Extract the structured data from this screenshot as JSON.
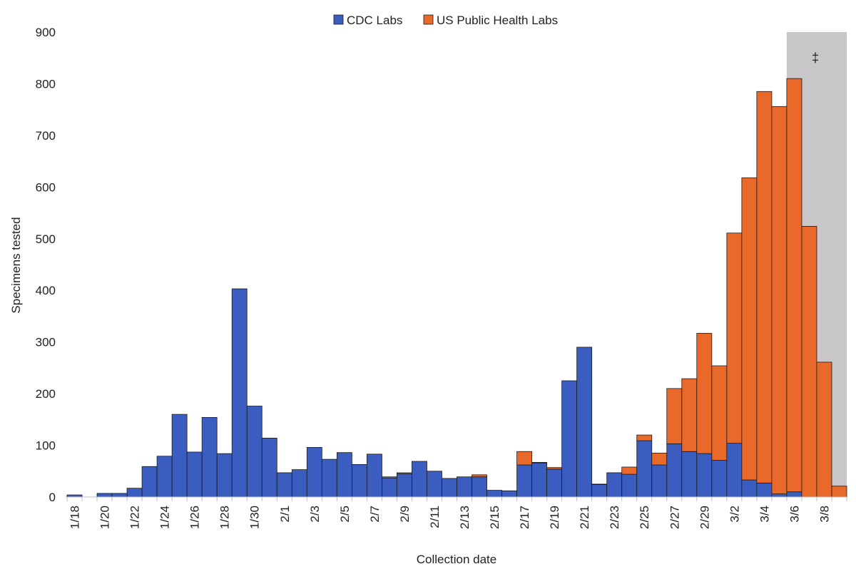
{
  "chart_data": {
    "type": "bar",
    "stacked": true,
    "title": "",
    "xlabel": "Collection date",
    "ylabel": "Specimens tested",
    "ylim": [
      0,
      900
    ],
    "yticks": [
      0,
      100,
      200,
      300,
      400,
      500,
      600,
      700,
      800,
      900
    ],
    "categories": [
      "1/18",
      "1/19",
      "1/20",
      "1/21",
      "1/22",
      "1/23",
      "1/24",
      "1/25",
      "1/26",
      "1/27",
      "1/28",
      "1/29",
      "1/30",
      "1/31",
      "2/1",
      "2/2",
      "2/3",
      "2/4",
      "2/5",
      "2/6",
      "2/7",
      "2/8",
      "2/9",
      "2/10",
      "2/11",
      "2/12",
      "2/13",
      "2/14",
      "2/15",
      "2/16",
      "2/17",
      "2/18",
      "2/19",
      "2/20",
      "2/21",
      "2/22",
      "2/23",
      "2/24",
      "2/25",
      "2/26",
      "2/27",
      "2/28",
      "2/29",
      "3/1",
      "3/2",
      "3/3",
      "3/4",
      "3/5",
      "3/6",
      "3/7",
      "3/8",
      "3/9"
    ],
    "xtick_labels": [
      "1/18",
      "1/20",
      "1/22",
      "1/24",
      "1/26",
      "1/28",
      "1/30",
      "2/1",
      "2/3",
      "2/5",
      "2/7",
      "2/9",
      "2/11",
      "2/13",
      "2/15",
      "2/17",
      "2/19",
      "2/21",
      "2/23",
      "2/25",
      "2/27",
      "2/29",
      "3/2",
      "3/4",
      "3/6",
      "3/8"
    ],
    "series": [
      {
        "name": "CDC Labs",
        "color": "#3a5dbf",
        "values": [
          4,
          0,
          7,
          7,
          17,
          59,
          79,
          160,
          87,
          154,
          84,
          403,
          176,
          114,
          47,
          53,
          96,
          73,
          86,
          63,
          83,
          37,
          45,
          69,
          50,
          36,
          39,
          39,
          13,
          12,
          62,
          66,
          54,
          225,
          290,
          24,
          47,
          44,
          109,
          62,
          103,
          88,
          84,
          71,
          104,
          33,
          27,
          6,
          10,
          0,
          0,
          0
        ]
      },
      {
        "name": "US Public Health Labs",
        "color": "#e8692a",
        "values": [
          0,
          0,
          0,
          0,
          0,
          0,
          0,
          0,
          0,
          0,
          0,
          0,
          0,
          0,
          0,
          0,
          0,
          0,
          0,
          0,
          0,
          2,
          2,
          0,
          0,
          0,
          0,
          4,
          0,
          0,
          26,
          1,
          3,
          0,
          0,
          1,
          0,
          14,
          11,
          23,
          107,
          141,
          233,
          183,
          407,
          585,
          758,
          750,
          800,
          524,
          261,
          21
        ]
      }
    ],
    "legend": {
      "position": "top-center",
      "entries": [
        "CDC Labs",
        "US Public Health Labs"
      ]
    },
    "shaded_region": {
      "from": "3/6",
      "to": "3/9",
      "color": "#c8c6c8",
      "label": "‡"
    },
    "grid": false
  }
}
